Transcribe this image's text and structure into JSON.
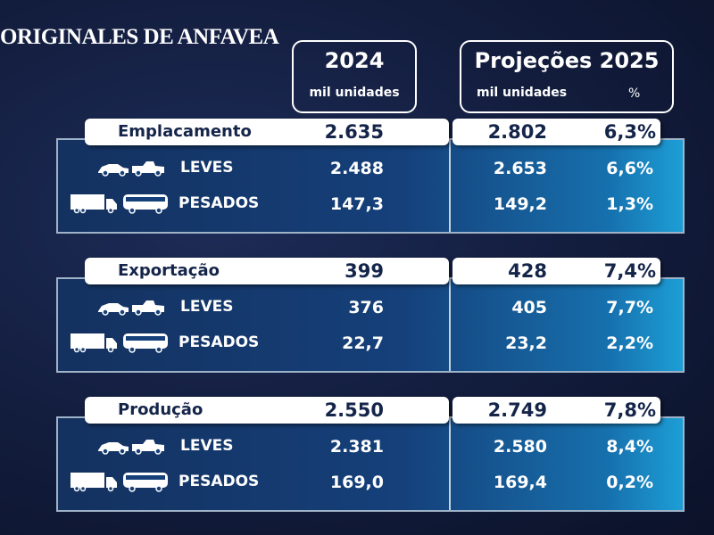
{
  "title": "ORIGINALES DE ANFAVEA",
  "headers": {
    "year": "2024",
    "year_unit": "mil unidades",
    "projection": "Projeções 2025",
    "projection_unit": "mil unidades",
    "pct": "%"
  },
  "sections": [
    {
      "name": "Emplacamento",
      "v2024": "2.635",
      "v2025": "2.802",
      "pct": "6,3%",
      "rows": [
        {
          "label": "LEVES",
          "v2024": "2.488",
          "v2025": "2.653",
          "pct": "6,6%"
        },
        {
          "label": "PESADOS",
          "v2024": "147,3",
          "v2025": "149,2",
          "pct": "1,3%"
        }
      ]
    },
    {
      "name": "Exportação",
      "v2024": "399",
      "v2025": "428",
      "pct": "7,4%",
      "rows": [
        {
          "label": "LEVES",
          "v2024": "376",
          "v2025": "405",
          "pct": "7,7%"
        },
        {
          "label": "PESADOS",
          "v2024": "22,7",
          "v2025": "23,2",
          "pct": "2,2%"
        }
      ]
    },
    {
      "name": "Produção",
      "v2024": "2.550",
      "v2025": "2.749",
      "pct": "7,8%",
      "rows": [
        {
          "label": "LEVES",
          "v2024": "2.381",
          "v2025": "2.580",
          "pct": "8,4%"
        },
        {
          "label": "PESADOS",
          "v2024": "169,0",
          "v2025": "169,4",
          "pct": "0,2%"
        }
      ]
    }
  ]
}
